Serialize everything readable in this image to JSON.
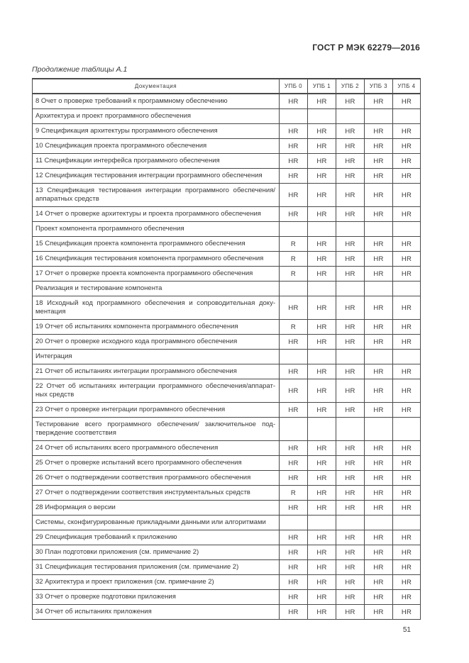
{
  "page": {
    "doc_header": "ГОСТ Р МЭК 62279—2016",
    "table_caption": "Продолжение таблицы А.1",
    "page_number": "51"
  },
  "table": {
    "columns": [
      "Документация",
      "УПБ 0",
      "УПБ 1",
      "УПБ 2",
      "УПБ 3",
      "УПБ 4"
    ],
    "rows": [
      {
        "label": "8 Очет о проверке требований к программному обеспечению",
        "values": [
          "HR",
          "HR",
          "HR",
          "HR",
          "HR"
        ]
      },
      {
        "label": "Архитектура и проект программного обеспечения",
        "values": [
          "",
          "",
          "",
          "",
          ""
        ]
      },
      {
        "label": "9 Спецификация архитектуры программного обеспечения",
        "values": [
          "HR",
          "HR",
          "HR",
          "HR",
          "HR"
        ]
      },
      {
        "label": "10 Спецификация проекта программного обеспечения",
        "values": [
          "HR",
          "HR",
          "HR",
          "HR",
          "HR"
        ]
      },
      {
        "label": "11 Спецификации интерфейса программного обеспечения",
        "values": [
          "HR",
          "HR",
          "HR",
          "HR",
          "HR"
        ]
      },
      {
        "label": "12 Спецификация тестирования интеграции программного обеспечения",
        "values": [
          "HR",
          "HR",
          "HR",
          "HR",
          "HR"
        ]
      },
      {
        "label": "13 Спецификация тестирования интеграции программного обеспечения/ аппаратных средств",
        "values": [
          "HR",
          "HR",
          "HR",
          "HR",
          "HR"
        ]
      },
      {
        "label": "14 Отчет о проверке архитектуры и проекта программного обеспечения",
        "values": [
          "HR",
          "HR",
          "HR",
          "HR",
          "HR"
        ]
      },
      {
        "label": "Проект компонента программного обеспечения",
        "values": [
          "",
          "",
          "",
          "",
          ""
        ]
      },
      {
        "label": "15 Спецификация проекта компонента программного обеспечения",
        "values": [
          "R",
          "HR",
          "HR",
          "HR",
          "HR"
        ]
      },
      {
        "label": "16 Спецификация тестирования компонента программного обеспечения",
        "values": [
          "R",
          "HR",
          "HR",
          "HR",
          "HR"
        ]
      },
      {
        "label": "17 Отчет о проверке проекта компонента программного обеспечения",
        "values": [
          "R",
          "HR",
          "HR",
          "HR",
          "HR"
        ]
      },
      {
        "label": "Реализация и тестирование компонента",
        "values": [
          "",
          "",
          "",
          "",
          ""
        ]
      },
      {
        "label": "18 Исходный код программного обеспечения и сопроводительная доку­ментация",
        "values": [
          "HR",
          "HR",
          "HR",
          "HR",
          "HR"
        ]
      },
      {
        "label": "19 Отчет об испытаниях компонента программного обеспечения",
        "values": [
          "R",
          "HR",
          "HR",
          "HR",
          "HR"
        ]
      },
      {
        "label": "20 Отчет о проверке исходного кода программного обеспечения",
        "values": [
          "HR",
          "HR",
          "HR",
          "HR",
          "HR"
        ]
      },
      {
        "label": "Интеграция",
        "values": [
          "",
          "",
          "",
          "",
          ""
        ]
      },
      {
        "label": "21 Отчет об испытаниях интеграции программного обеспечения",
        "values": [
          "HR",
          "HR",
          "HR",
          "HR",
          "HR"
        ]
      },
      {
        "label": "22 Отчет об испытаниях интеграции программного обеспечения/аппарат­ных средств",
        "values": [
          "HR",
          "HR",
          "HR",
          "HR",
          "HR"
        ]
      },
      {
        "label": "23 Отчет о проверке интеграции программного обеспечения",
        "values": [
          "HR",
          "HR",
          "HR",
          "HR",
          "HR"
        ]
      },
      {
        "label": "Тестирование всего программного обеспечения/ заключительное под­тверждение соответствия",
        "values": [
          "",
          "",
          "",
          "",
          ""
        ]
      },
      {
        "label": "24 Отчет об испытаниях всего программного обеспечения",
        "values": [
          "HR",
          "HR",
          "HR",
          "HR",
          "HR"
        ]
      },
      {
        "label": "25 Отчет о проверке испытаний всего программного обеспечения",
        "values": [
          "HR",
          "HR",
          "HR",
          "HR",
          "HR"
        ]
      },
      {
        "label": "26 Отчет о подтверждении соответствия программного обеспечения",
        "values": [
          "HR",
          "HR",
          "HR",
          "HR",
          "HR"
        ]
      },
      {
        "label": "27 Отчет о подтверждении соответствия инструментальных средств",
        "values": [
          "R",
          "HR",
          "HR",
          "HR",
          "HR"
        ]
      },
      {
        "label": "28 Информация о версии",
        "values": [
          "HR",
          "HR",
          "HR",
          "HR",
          "HR"
        ]
      },
      {
        "label": "Системы, сконфигурированные прикладными данными или алгоритмами",
        "values": [
          "",
          "",
          "",
          "",
          ""
        ]
      },
      {
        "label": "29 Спецификация требований к приложению",
        "values": [
          "HR",
          "HR",
          "HR",
          "HR",
          "HR"
        ]
      },
      {
        "label": "30 План подготовки приложения (см. примечание 2)",
        "values": [
          "HR",
          "HR",
          "HR",
          "HR",
          "HR"
        ]
      },
      {
        "label": "31 Спецификация тестирования приложения (см. примечание 2)",
        "values": [
          "HR",
          "HR",
          "HR",
          "HR",
          "HR"
        ]
      },
      {
        "label": "32 Архитектура и проект приложения (см. примечание 2)",
        "values": [
          "HR",
          "HR",
          "HR",
          "HR",
          "HR"
        ]
      },
      {
        "label": "33 Отчет о проверке подготовки приложения",
        "values": [
          "HR",
          "HR",
          "HR",
          "HR",
          "HR"
        ]
      },
      {
        "label": "34 Отчет об испытаниях приложения",
        "values": [
          "HR",
          "HR",
          "HR",
          "HR",
          "HR"
        ]
      }
    ]
  }
}
